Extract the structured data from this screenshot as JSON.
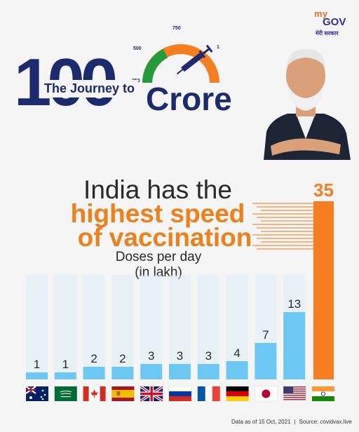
{
  "logo": {
    "line1": "my",
    "line2": "GOV",
    "tagline": "मेरी सरकार"
  },
  "banner": {
    "number": "100",
    "prefix": "The Journey to",
    "unit": "Crore",
    "gauge_labels": [
      "250",
      "500",
      "750",
      "1"
    ],
    "gauge_unit": "MILLION",
    "gauge_unit_last": "BILLION"
  },
  "headline": {
    "line1": "India has the",
    "line2": "highest speed",
    "line3": "of vaccination",
    "sub1": "Doses per day",
    "sub2": "(in lakh)"
  },
  "footer": {
    "date": "Data as of 15 Oct, 2021",
    "source": "Source: covidvax.live"
  },
  "colors": {
    "bar": "#6cc8f3",
    "bar_shadow": "#d9edf8",
    "highlight": "#f57f20",
    "navy": "#1d2a6e",
    "orange_text": "#f07f1a",
    "green": "#239b3a"
  },
  "chart_data": {
    "type": "bar",
    "categories": [
      "Australia",
      "Saudi Arabia",
      "Canada",
      "Spain",
      "United Kingdom",
      "Russia",
      "France",
      "Germany",
      "Japan",
      "United States",
      "India"
    ],
    "values": [
      1,
      1,
      2,
      2,
      3,
      3,
      3,
      4,
      7,
      13,
      35
    ],
    "value_labels": [
      "1",
      "1",
      "2",
      "2",
      "3",
      "3",
      "3",
      "4",
      "7",
      "13",
      "35"
    ],
    "highlight_category": "India",
    "ylim": [
      0,
      35
    ],
    "grid": false,
    "axes_visible": false,
    "icons": [
      "australia-flag",
      "saudi-arabia-flag",
      "canada-flag",
      "spain-flag",
      "uk-flag",
      "russia-flag",
      "france-flag",
      "germany-flag",
      "japan-flag",
      "usa-flag",
      "india-flag"
    ]
  }
}
